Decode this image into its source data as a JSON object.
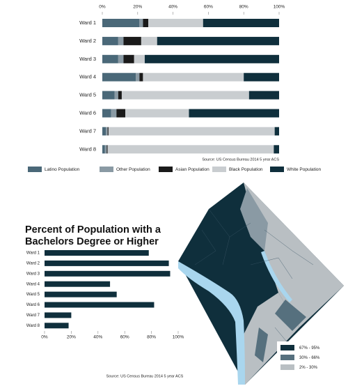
{
  "chart_data": [
    {
      "type": "stacked-bar-horizontal",
      "categories": [
        "Ward 1",
        "Ward 2",
        "Ward 3",
        "Ward 4",
        "Ward 5",
        "Ward 6",
        "Ward 7",
        "Ward 8"
      ],
      "series": [
        {
          "name": "Latino Population",
          "color": "#4a6878",
          "values": [
            21,
            9,
            9,
            19,
            7,
            5,
            2,
            1.5
          ]
        },
        {
          "name": "Other Population",
          "color": "#8a9aa4",
          "values": [
            2,
            3,
            3,
            2,
            2,
            3,
            1,
            1
          ]
        },
        {
          "name": "Asian Population",
          "color": "#1a1a1a",
          "values": [
            3,
            10,
            6,
            2,
            2,
            5,
            0.5,
            0.5
          ]
        },
        {
          "name": "Black Population",
          "color": "#c9cdd0",
          "values": [
            31,
            9,
            6,
            57,
            72,
            36,
            94,
            94
          ]
        },
        {
          "name": "White Population",
          "color": "#0f2f3c",
          "values": [
            43,
            69,
            76,
            20,
            17,
            51,
            2.5,
            3
          ]
        }
      ],
      "xlim": [
        0,
        100
      ],
      "xticks": [
        {
          "value": 0,
          "label": "0%"
        },
        {
          "value": 20,
          "label": "20%"
        },
        {
          "value": 40,
          "label": "40%"
        },
        {
          "value": 60,
          "label": "60%"
        },
        {
          "value": 80,
          "label": "80%"
        },
        {
          "value": 100,
          "label": "100%"
        }
      ],
      "source": "Source: US Census Bureau 2014 5 year ACS"
    },
    {
      "type": "bar-horizontal",
      "title": "Percent of Population with a Bachelors Degree or Higher",
      "categories": [
        "Ward 1",
        "Ward 2",
        "Ward 3",
        "Ward 4",
        "Ward 5",
        "Ward 6",
        "Ward 7",
        "Ward 8"
      ],
      "values": [
        78,
        93,
        94,
        49,
        54,
        82,
        20,
        18
      ],
      "color": "#0f2f3c",
      "xlim": [
        0,
        100
      ],
      "xticks": [
        {
          "value": 0,
          "label": "0%"
        },
        {
          "value": 20,
          "label": "20%"
        },
        {
          "value": 40,
          "label": "40%"
        },
        {
          "value": 60,
          "label": "60%"
        },
        {
          "value": 80,
          "label": "80%"
        },
        {
          "value": 100,
          "label": "100%"
        }
      ],
      "source": "Source: US Census Bureau 2014 5 year ACS"
    }
  ],
  "map": {
    "legend": [
      {
        "label": "67% - 95%",
        "color": "#0f2f3c"
      },
      {
        "label": "30% - 66%",
        "color": "#56707e"
      },
      {
        "label": "2% - 30%",
        "color": "#b9bfc3"
      }
    ]
  }
}
